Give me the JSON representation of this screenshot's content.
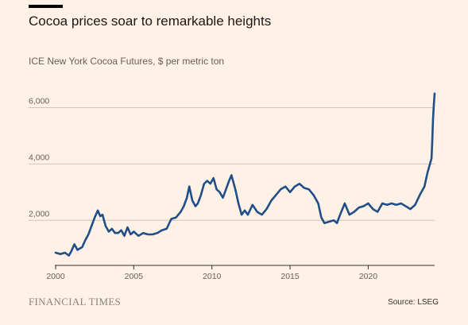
{
  "header": {
    "title": "Cocoa prices soar to remarkable heights",
    "subtitle": "ICE New York Cocoa Futures, $ per metric ton"
  },
  "footer": {
    "logo_text": "FINANCIAL TIMES",
    "source": "Source: LSEG"
  },
  "colors": {
    "background": "#FFF1E5",
    "line": "#1F4E89",
    "grid": "#CEC6B9",
    "axis": "#66605C"
  },
  "chart_data": {
    "type": "line",
    "title": "Cocoa prices soar to remarkable heights",
    "subtitle": "ICE New York Cocoa Futures, $ per metric ton",
    "xlabel": "",
    "ylabel": "",
    "xlim": [
      2000,
      2024.25
    ],
    "ylim": [
      400,
      7000
    ],
    "yticks": [
      2000,
      4000,
      6000
    ],
    "ytick_labels": [
      "2,000",
      "4,000",
      "6,000"
    ],
    "xticks": [
      2000,
      2005,
      2010,
      2015,
      2020
    ],
    "xtick_labels": [
      "2000",
      "2005",
      "2010",
      "2015",
      "2020"
    ],
    "grid": "horizontal",
    "series": [
      {
        "x": [
          2000.0,
          2000.3,
          2000.6,
          2000.85,
          2001.0,
          2001.2,
          2001.4,
          2001.7,
          2001.9,
          2002.1,
          2002.3,
          2002.5,
          2002.7,
          2002.85,
          2003.0,
          2003.2,
          2003.4,
          2003.6,
          2003.8,
          2004.0,
          2004.2,
          2004.4,
          2004.6,
          2004.8,
          2005.0,
          2005.3,
          2005.6,
          2005.9,
          2006.2,
          2006.5,
          2006.8,
          2007.1,
          2007.4,
          2007.7,
          2008.0,
          2008.2,
          2008.4,
          2008.55,
          2008.75,
          2008.95,
          2009.1,
          2009.3,
          2009.5,
          2009.7,
          2009.9,
          2010.1,
          2010.3,
          2010.5,
          2010.7,
          2010.9,
          2011.1,
          2011.25,
          2011.5,
          2011.7,
          2011.9,
          2012.1,
          2012.3,
          2012.6,
          2012.9,
          2013.2,
          2013.5,
          2013.8,
          2014.1,
          2014.4,
          2014.7,
          2015.0,
          2015.3,
          2015.6,
          2015.9,
          2016.2,
          2016.5,
          2016.8,
          2017.0,
          2017.2,
          2017.5,
          2017.8,
          2018.0,
          2018.2,
          2018.5,
          2018.8,
          2019.1,
          2019.4,
          2019.7,
          2020.0,
          2020.3,
          2020.6,
          2020.9,
          2021.2,
          2021.5,
          2021.8,
          2022.1,
          2022.4,
          2022.7,
          2023.0,
          2023.3,
          2023.6,
          2023.8,
          2023.95,
          2024.05,
          2024.1,
          2024.15,
          2024.2,
          2024.25
        ],
        "values": [
          850,
          800,
          850,
          750,
          900,
          1150,
          950,
          1050,
          1300,
          1500,
          1800,
          2100,
          2350,
          2150,
          2200,
          1800,
          1600,
          1700,
          1550,
          1550,
          1650,
          1450,
          1750,
          1500,
          1600,
          1450,
          1550,
          1500,
          1500,
          1550,
          1650,
          1700,
          2050,
          2100,
          2300,
          2500,
          2800,
          3200,
          2700,
          2500,
          2600,
          2900,
          3300,
          3400,
          3300,
          3500,
          3100,
          3000,
          2800,
          3100,
          3400,
          3600,
          3100,
          2600,
          2200,
          2350,
          2200,
          2550,
          2300,
          2200,
          2400,
          2700,
          2900,
          3100,
          3200,
          3000,
          3200,
          3300,
          3150,
          3100,
          2900,
          2600,
          2100,
          1900,
          1950,
          2000,
          1900,
          2200,
          2600,
          2200,
          2300,
          2450,
          2500,
          2600,
          2400,
          2300,
          2600,
          2550,
          2600,
          2550,
          2600,
          2500,
          2400,
          2550,
          2900,
          3200,
          3700,
          4000,
          4200,
          4800,
          5600,
          6100,
          6500
        ]
      }
    ]
  }
}
